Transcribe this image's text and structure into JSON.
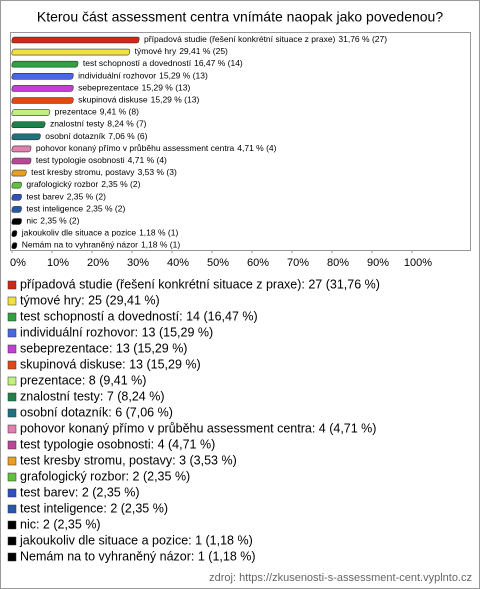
{
  "chart_data": {
    "type": "bar",
    "orientation": "horizontal",
    "title": "Kterou část assessment centra vnímáte naopak jako povedenou?",
    "categories": [
      "případová studie (řešení konkrétní situace z praxe)",
      "týmové hry",
      "test schopností a dovedností",
      "individuální rozhovor",
      "sebeprezentace",
      "skupinová diskuse",
      "prezentace",
      "znalostní testy",
      "osobní dotazník",
      "pohovor konaný přímo v průběhu assessment centra",
      "test typologie osobnosti",
      "test kresby stromu, postavy",
      "grafologický rozbor",
      "test barev",
      "test inteligence",
      "nic",
      "jakoukoliv dle situace a pozice",
      "Nemám na to vyhraněný názor"
    ],
    "values": [
      31.76,
      29.41,
      16.47,
      15.29,
      15.29,
      15.29,
      9.41,
      8.24,
      7.06,
      4.71,
      4.71,
      3.53,
      2.35,
      2.35,
      2.35,
      2.35,
      1.18,
      1.18
    ],
    "value_labels": [
      "31,76 % (27)",
      "29,41 % (25)",
      "16,47 % (14)",
      "15,29 % (13)",
      "15,29 % (13)",
      "15,29 % (13)",
      "9,41 % (8)",
      "8,24 % (7)",
      "7,06 % (6)",
      "4,71 % (4)",
      "4,71 % (4)",
      "3,53 % (3)",
      "2,35 % (2)",
      "2,35 % (2)",
      "2,35 % (2)",
      "2,35 % (2)",
      "1,18 % (1)",
      "1,18 % (1)"
    ],
    "legend_labels": [
      "případová studie (řešení konkrétní situace z praxe): 27 (31,76 %)",
      "týmové hry: 25 (29,41 %)",
      "test schopností a dovedností: 14 (16,47 %)",
      "individuální rozhovor: 13 (15,29 %)",
      "sebeprezentace: 13 (15,29 %)",
      "skupinová diskuse: 13 (15,29 %)",
      "prezentace: 8 (9,41 %)",
      "znalostní testy: 7 (8,24 %)",
      "osobní dotazník: 6 (7,06 %)",
      "pohovor konaný přímo v průběhu assessment centra: 4 (4,71 %)",
      "test typologie osobnosti: 4 (4,71 %)",
      "test kresby stromu, postavy: 3 (3,53 %)",
      "grafologický rozbor: 2 (2,35 %)",
      "test barev: 2 (2,35 %)",
      "test inteligence: 2 (2,35 %)",
      "nic: 2 (2,35 %)",
      "jakoukoliv dle situace a pozice: 1 (1,18 %)",
      "Nemám na to vyhraněný názor: 1 (1,18 %)"
    ],
    "colors": [
      "#d02818",
      "#f0e040",
      "#30a040",
      "#4868e0",
      "#c040d0",
      "#e04818",
      "#c0f080",
      "#208048",
      "#207080",
      "#e080b0",
      "#b84898",
      "#e8a020",
      "#60c040",
      "#3050c0",
      "#2858a8",
      "#000000",
      "#000000",
      "#000000"
    ],
    "xlim": [
      0,
      100
    ],
    "xticks": [
      {
        "value": 0,
        "label": "0%"
      },
      {
        "value": 10,
        "label": "10%"
      },
      {
        "value": 20,
        "label": "20%"
      },
      {
        "value": 30,
        "label": "30%"
      },
      {
        "value": 40,
        "label": "40%"
      },
      {
        "value": 50,
        "label": "50%"
      },
      {
        "value": 60,
        "label": "60%"
      },
      {
        "value": 70,
        "label": "70%"
      },
      {
        "value": 80,
        "label": "80%"
      },
      {
        "value": 90,
        "label": "90%"
      },
      {
        "value": 100,
        "label": "100%"
      }
    ],
    "source": "zdroj: https://zkusenosti-s-assessment-cent.vyplnto.cz"
  }
}
